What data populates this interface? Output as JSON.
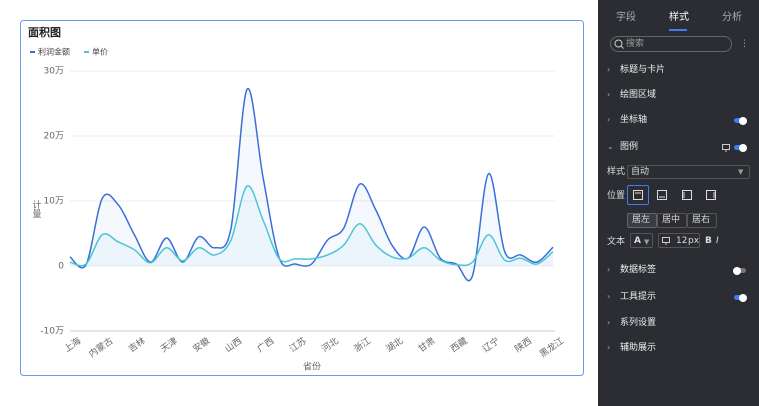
{
  "chart_data": {
    "type": "area",
    "title": "面积图",
    "categories": [
      "上海",
      null,
      "内蒙古",
      null,
      "吉林",
      null,
      "天津",
      null,
      "安徽",
      null,
      "山西",
      null,
      "广西",
      null,
      "江苏",
      null,
      "河北",
      null,
      "浙江",
      null,
      "湖北",
      null,
      "甘肃",
      null,
      "西藏",
      null,
      "辽宁",
      null,
      "陕西",
      null,
      "黑龙江"
    ],
    "series": [
      {
        "name": "利润金额",
        "color": "#3a6fd8",
        "values": [
          14000,
          2000,
          104000,
          94000,
          48000,
          6000,
          43000,
          6000,
          45000,
          28000,
          58000,
          272000,
          135000,
          12000,
          3000,
          3000,
          40000,
          58000,
          126000,
          86000,
          32000,
          12000,
          60000,
          12000,
          3000,
          -15000,
          142000,
          22000,
          17000,
          6000,
          29000
        ]
      },
      {
        "name": "单价",
        "color": "#4cc6d6",
        "values": [
          6000,
          3000,
          48000,
          37000,
          25000,
          5000,
          28000,
          8000,
          28000,
          17000,
          40000,
          123000,
          70000,
          11000,
          11000,
          11000,
          17000,
          32000,
          65000,
          32000,
          14000,
          12000,
          28000,
          9000,
          2000,
          6000,
          48000,
          9000,
          12000,
          3000,
          22000
        ]
      }
    ],
    "ylim": [
      -100000,
      300000
    ],
    "yticks": [
      {
        "value": -100000,
        "label": "-10万"
      },
      0,
      {
        "value": 100000,
        "label": "10万"
      },
      {
        "value": 200000,
        "label": "20万"
      },
      {
        "value": 300000,
        "label": "30万"
      }
    ],
    "grid": true,
    "xlabel": "省份",
    "ylabel": "计量"
  },
  "panel": {
    "tabs": [
      "字段",
      "样式",
      "分析"
    ],
    "search": "搜索",
    "sections": [
      {
        "label": "标题与卡片"
      },
      {
        "label": "绘图区域"
      },
      {
        "label": "坐标轴",
        "toggle": true
      },
      {
        "label": "图例",
        "toggle": true,
        "expanded": true
      },
      {
        "label": "数据标签",
        "toggle": false
      },
      {
        "label": "工具提示",
        "toggle": true
      },
      {
        "label": "系列设置"
      },
      {
        "label": "辅助展示"
      }
    ],
    "legend": {
      "style_label": "样式",
      "style_value": "自动",
      "position_label": "位置",
      "align": [
        "居左",
        "居中",
        "居右"
      ],
      "text_label": "文本",
      "font": "A",
      "font_size": 12,
      "font_unit": "px",
      "bold": "B",
      "italic": "I"
    }
  }
}
